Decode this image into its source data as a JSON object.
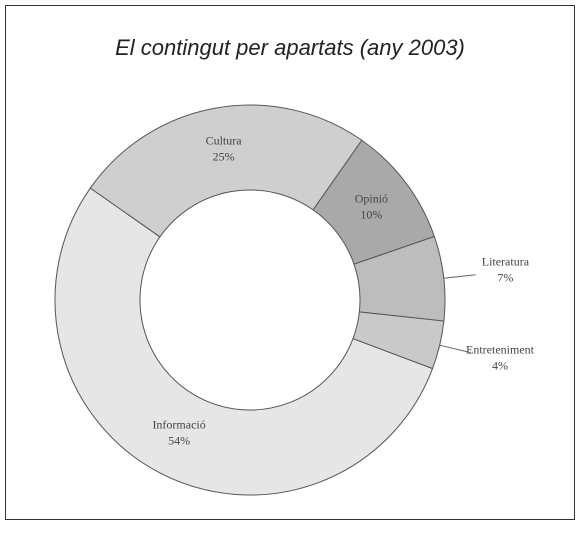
{
  "chart_data": {
    "type": "donut",
    "title": "El contingut per apartats (any 2003)",
    "categories": [
      "Cultura",
      "Opinió",
      "Literatura",
      "Entreteniment",
      "Informació"
    ],
    "values": [
      25,
      10,
      7,
      4,
      54
    ],
    "value_labels": [
      "25%",
      "10%",
      "7%",
      "4%",
      "54%"
    ],
    "colors": [
      "#cfcfcf",
      "#a9a9a9",
      "#bdbdbd",
      "#c9c9c9",
      "#e6e6e6"
    ]
  }
}
